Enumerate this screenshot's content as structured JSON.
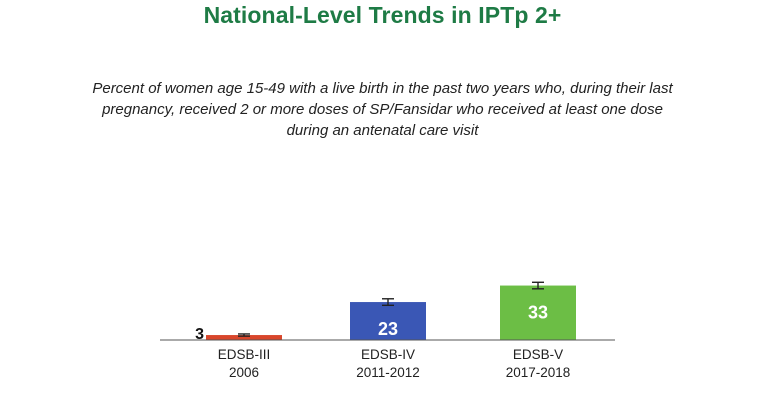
{
  "title": "National-Level Trends in IPTp 2+",
  "subtitle": "Percent of women age 15-49 with a live birth in the past two years who, during their last pregnancy, received 2 or more doses of SP/Fansidar who received at least one dose during an antenatal care visit",
  "chart_data": {
    "type": "bar",
    "title": "",
    "xlabel": "",
    "ylabel": "",
    "ylim": [
      0,
      40
    ],
    "grid": false,
    "error_bars": true,
    "categories": [
      [
        "EDSB-III",
        "2006"
      ],
      [
        "EDSB-IV",
        "2011-2012"
      ],
      [
        "EDSB-V",
        "2017-2018"
      ]
    ],
    "values": [
      3,
      23,
      33
    ],
    "value_labels": [
      "3",
      "23",
      "33"
    ],
    "error": [
      0.3,
      0.9,
      0.9
    ],
    "colors": [
      "#d9462b",
      "#3a57b5",
      "#6cbe45"
    ]
  }
}
